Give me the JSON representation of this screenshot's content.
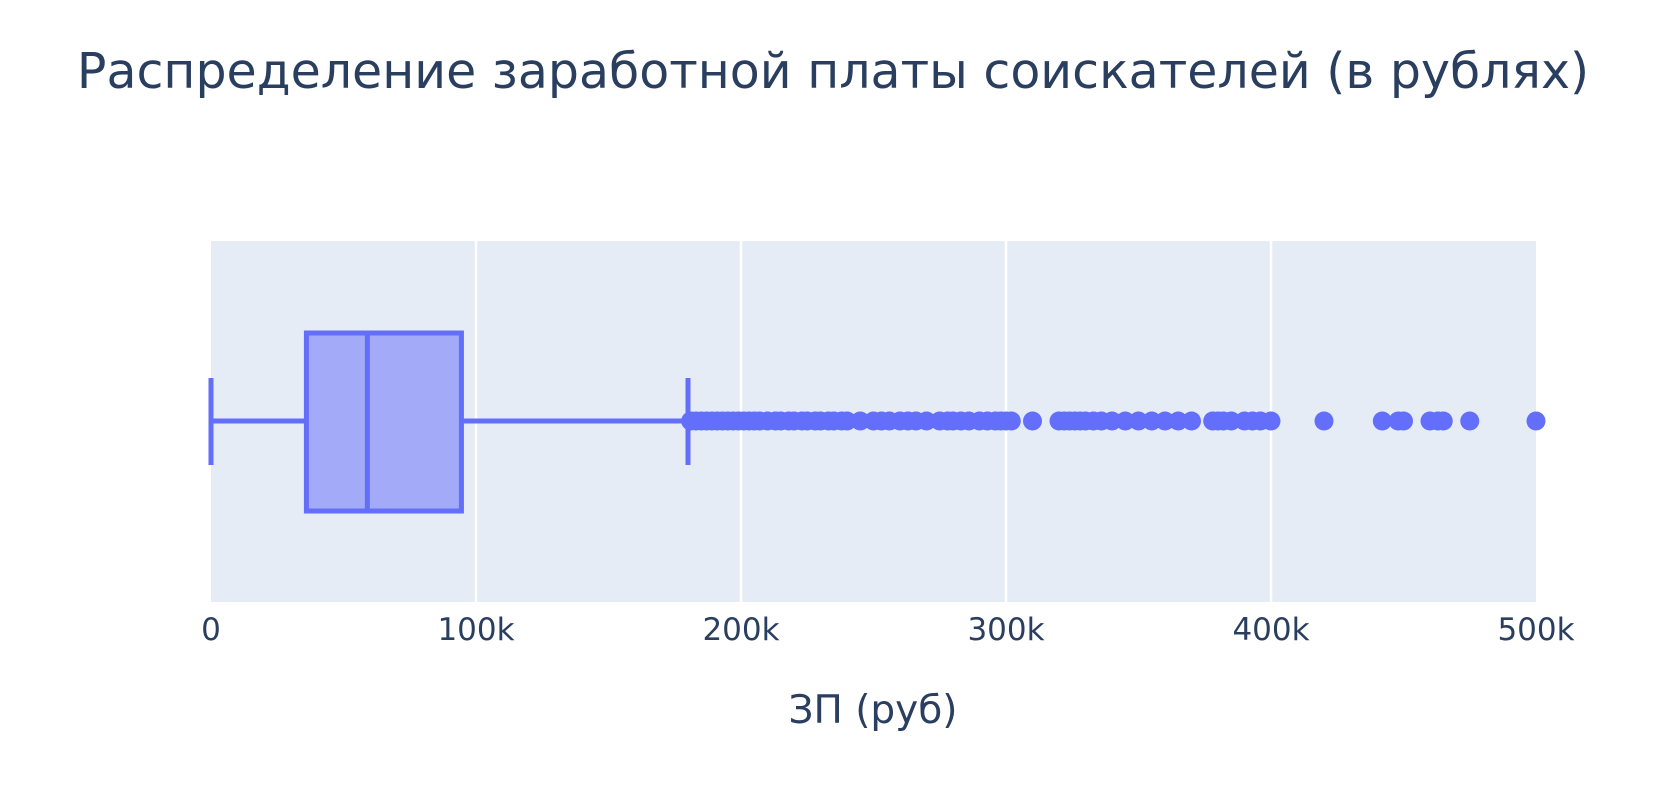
{
  "chart_data": {
    "type": "box",
    "orientation": "horizontal",
    "title": "Распределение заработной платы соискателей (в рублях)",
    "xlabel": "ЗП (руб)",
    "ylabel": "",
    "xlim": [
      0,
      500000
    ],
    "grid": true,
    "legend": "none",
    "x_ticks": [
      {
        "value": 0,
        "label": "0"
      },
      {
        "value": 100000,
        "label": "100k"
      },
      {
        "value": 200000,
        "label": "200k"
      },
      {
        "value": 300000,
        "label": "300k"
      },
      {
        "value": 400000,
        "label": "400k"
      },
      {
        "value": 500000,
        "label": "500k"
      }
    ],
    "box": {
      "lower_fence": 0,
      "q1": 36000,
      "median": 59000,
      "q3": 94500,
      "upper_fence": 180000
    },
    "outliers": [
      181000,
      183000,
      185000,
      187000,
      189000,
      191000,
      193000,
      195000,
      197000,
      199000,
      201000,
      203000,
      205000,
      207000,
      210000,
      213000,
      215000,
      218000,
      220000,
      223000,
      225000,
      228000,
      230000,
      233000,
      235000,
      238000,
      240000,
      245000,
      250000,
      253000,
      256000,
      260000,
      263000,
      266000,
      270000,
      275000,
      278000,
      280000,
      283000,
      286000,
      290000,
      293000,
      296000,
      298000,
      300000,
      302000,
      310000,
      320000,
      322000,
      324000,
      326000,
      328000,
      330000,
      333000,
      336000,
      340000,
      345000,
      350000,
      355000,
      360000,
      365000,
      370000,
      378000,
      380000,
      382000,
      385000,
      390000,
      393000,
      396000,
      400000,
      420000,
      442000,
      448000,
      450000,
      460000,
      463000,
      465000,
      475000,
      500000
    ],
    "colors": {
      "line": "#636efa",
      "fill": "#a3aaf7",
      "plot_bg": "#e5ecf6",
      "grid": "#ffffff",
      "text": "#2a3f5f"
    }
  }
}
